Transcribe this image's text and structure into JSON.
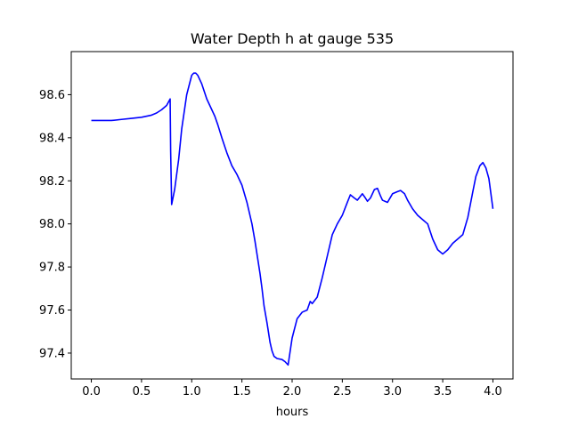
{
  "chart_data": {
    "type": "line",
    "title": "Water Depth h at gauge 535",
    "xlabel": "hours",
    "ylabel": "",
    "xlim": [
      -0.2,
      4.2
    ],
    "ylim": [
      97.28,
      98.8
    ],
    "xticks": [
      0.0,
      0.5,
      1.0,
      1.5,
      2.0,
      2.5,
      3.0,
      3.5,
      4.0
    ],
    "xtick_labels": [
      "0.0",
      "0.5",
      "1.0",
      "1.5",
      "2.0",
      "2.5",
      "3.0",
      "3.5",
      "4.0"
    ],
    "yticks": [
      97.4,
      97.6,
      97.8,
      98.0,
      98.2,
      98.4,
      98.6
    ],
    "ytick_labels": [
      "97.4",
      "97.6",
      "97.8",
      "98.0",
      "98.2",
      "98.4",
      "98.6"
    ],
    "grid": false,
    "series": [
      {
        "color": "#0000ff",
        "x": [
          0.0,
          0.1,
          0.2,
          0.3,
          0.4,
          0.5,
          0.6,
          0.65,
          0.7,
          0.75,
          0.785,
          0.79,
          0.8,
          0.83,
          0.87,
          0.9,
          0.95,
          1.0,
          1.02,
          1.04,
          1.06,
          1.1,
          1.15,
          1.2,
          1.23,
          1.26,
          1.3,
          1.35,
          1.4,
          1.45,
          1.48,
          1.5,
          1.55,
          1.6,
          1.63,
          1.65,
          1.68,
          1.7,
          1.72,
          1.75,
          1.78,
          1.8,
          1.82,
          1.85,
          1.9,
          1.93,
          1.96,
          2.0,
          2.05,
          2.1,
          2.15,
          2.18,
          2.2,
          2.25,
          2.3,
          2.35,
          2.4,
          2.45,
          2.5,
          2.55,
          2.58,
          2.62,
          2.65,
          2.7,
          2.73,
          2.75,
          2.78,
          2.82,
          2.85,
          2.88,
          2.9,
          2.95,
          3.0,
          3.05,
          3.08,
          3.12,
          3.15,
          3.2,
          3.25,
          3.3,
          3.35,
          3.4,
          3.45,
          3.5,
          3.55,
          3.6,
          3.65,
          3.7,
          3.75,
          3.8,
          3.83,
          3.87,
          3.9,
          3.93,
          3.96,
          4.0
        ],
        "y": [
          98.48,
          98.48,
          98.48,
          98.485,
          98.49,
          98.495,
          98.505,
          98.515,
          98.53,
          98.55,
          98.58,
          98.34,
          98.09,
          98.16,
          98.3,
          98.44,
          98.6,
          98.69,
          98.7,
          98.7,
          98.69,
          98.65,
          98.58,
          98.53,
          98.5,
          98.46,
          98.4,
          98.33,
          98.27,
          98.23,
          98.2,
          98.18,
          98.1,
          98.0,
          97.92,
          97.86,
          97.77,
          97.7,
          97.62,
          97.54,
          97.45,
          97.41,
          97.385,
          97.375,
          97.37,
          97.36,
          97.345,
          97.47,
          97.56,
          97.59,
          97.6,
          97.64,
          97.63,
          97.66,
          97.75,
          97.85,
          97.95,
          98.0,
          98.04,
          98.1,
          98.135,
          98.12,
          98.11,
          98.14,
          98.12,
          98.105,
          98.12,
          98.16,
          98.165,
          98.13,
          98.11,
          98.1,
          98.14,
          98.15,
          98.155,
          98.14,
          98.11,
          98.07,
          98.04,
          98.02,
          98.0,
          97.93,
          97.88,
          97.86,
          97.88,
          97.91,
          97.93,
          97.95,
          98.03,
          98.15,
          98.22,
          98.27,
          98.285,
          98.26,
          98.21,
          98.07
        ]
      }
    ]
  }
}
